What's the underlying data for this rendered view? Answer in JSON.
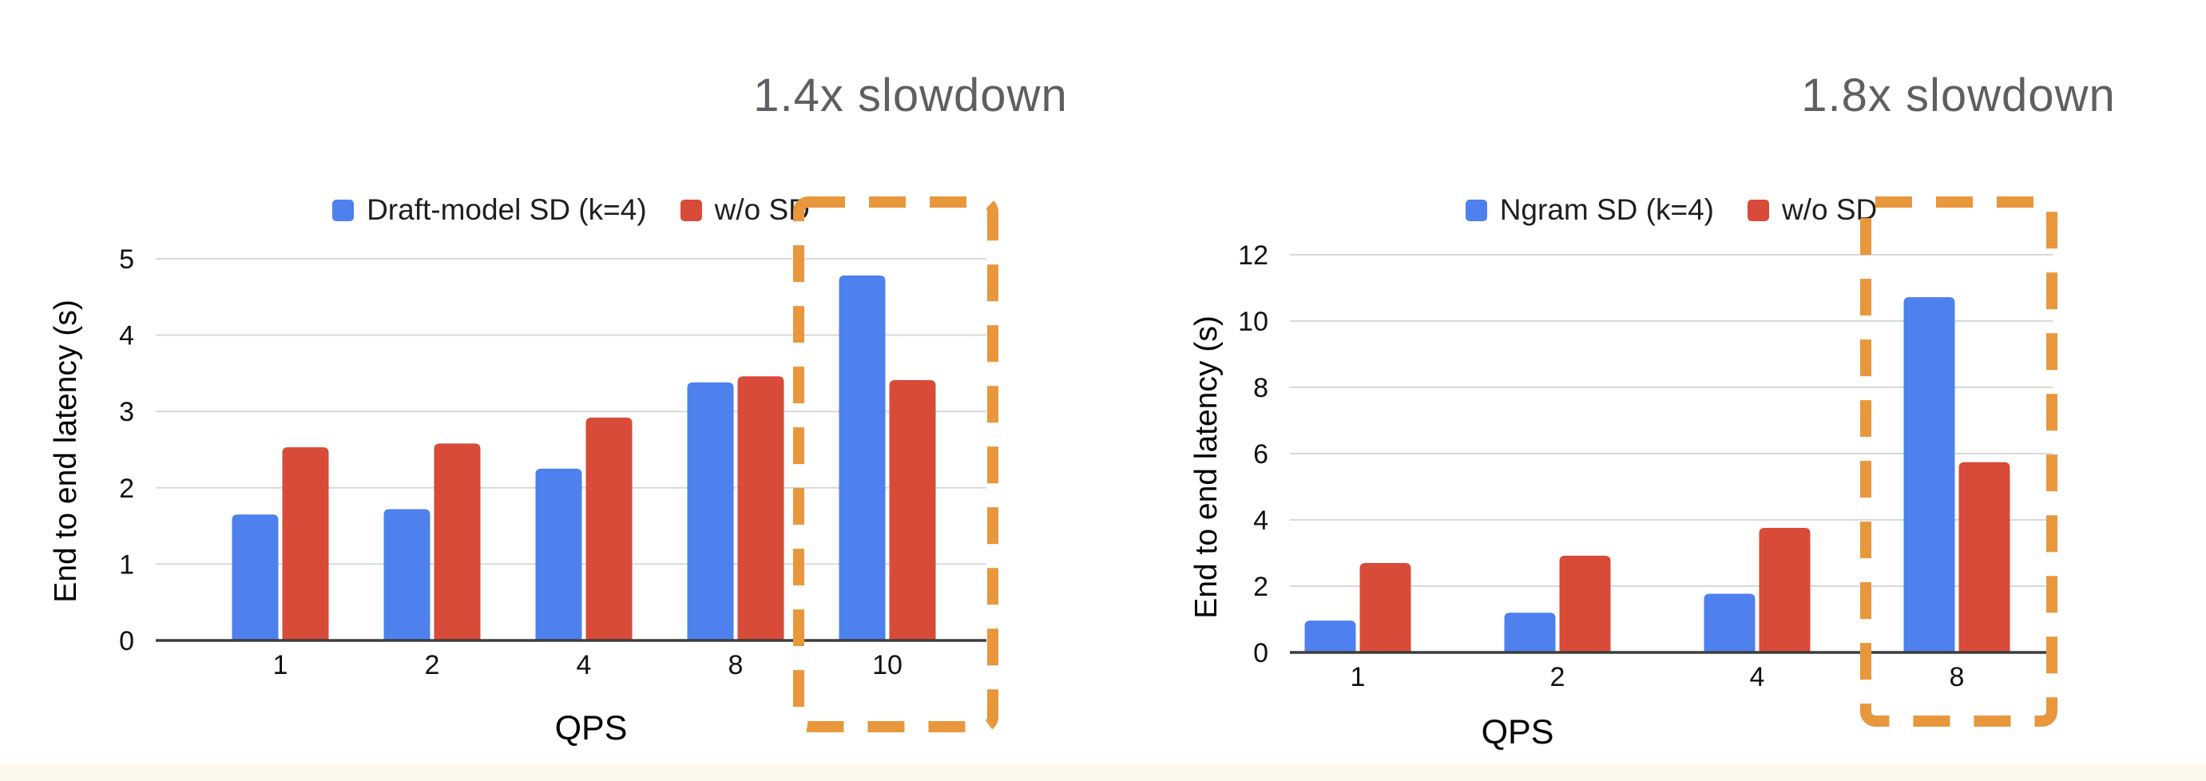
{
  "chart_data": [
    {
      "type": "bar",
      "title": "1.4x slowdown",
      "categories": [
        "1",
        "2",
        "4",
        "8",
        "10"
      ],
      "series": [
        {
          "name": "Draft-model SD (k=4)",
          "color": "#4e80ee",
          "values": [
            1.65,
            1.72,
            2.25,
            3.38,
            4.78
          ]
        },
        {
          "name": "w/o SD",
          "color": "#d84b38",
          "values": [
            2.53,
            2.58,
            2.92,
            3.46,
            3.41
          ]
        }
      ],
      "xlabel": "QPS",
      "ylabel": "End to end latency (s)",
      "ylim": [
        0,
        5
      ],
      "ytick_step": 1,
      "yticks": [
        "0",
        "1",
        "2",
        "3",
        "4",
        "5"
      ],
      "grid": true,
      "legend_position": "top",
      "highlight": {
        "category": "10",
        "style": "dashed-orange-box",
        "label": "1.4x slowdown"
      }
    },
    {
      "type": "bar",
      "title": "1.8x slowdown",
      "categories": [
        "1",
        "2",
        "4",
        "8"
      ],
      "series": [
        {
          "name": "Ngram SD (k=4)",
          "color": "#4e80ee",
          "values": [
            0.96,
            1.2,
            1.77,
            10.72
          ]
        },
        {
          "name": "w/o SD",
          "color": "#d84b38",
          "values": [
            2.7,
            2.92,
            3.76,
            5.74
          ]
        }
      ],
      "xlabel": "QPS",
      "ylabel": "End to end latency (s)",
      "ylim": [
        0,
        12
      ],
      "ytick_step": 2,
      "yticks": [
        "0",
        "2",
        "4",
        "6",
        "8",
        "10",
        "12"
      ],
      "grid": true,
      "legend_position": "top",
      "highlight": {
        "category": "8",
        "style": "dashed-orange-box",
        "label": "1.8x slowdown"
      }
    }
  ],
  "style": {
    "background": "#ffffff",
    "footer_strip": "#fbf8ee",
    "accent_orange": "#e8973d",
    "annotation_gray": "#5d6063",
    "grid_color": "#d9d9d9",
    "axis_color": "#3d3d3d",
    "tick_text_color": "#111111",
    "series_blue": "#4e80ee",
    "series_red": "#d84b38"
  }
}
